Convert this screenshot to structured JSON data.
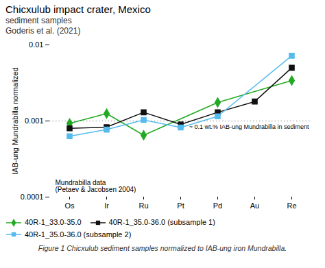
{
  "chart_data": {
    "type": "line",
    "title": "Chicxulub impact crater, Mexico",
    "subtitle": [
      "sediment samples",
      "Goderis et al. (2021)"
    ],
    "caption": "Figure 1  Chicxulub sediment samples normalized to IAB-ung iron Mundrabilla.",
    "categories": [
      "Os",
      "Ir",
      "Ru",
      "Pt",
      "Pd",
      "Au",
      "Re"
    ],
    "ylabel": "IAB-ung Mundrabilla normalized",
    "log": "y",
    "ylim": [
      0.0001,
      0.01
    ],
    "yticks": [
      0.0001,
      0.001,
      0.01
    ],
    "grid": false,
    "reference_lines": [
      {
        "y": 0.001,
        "label": "~ 0.1 wt.% IAB-ung Mundrabilla in sediment"
      }
    ],
    "annotations": [
      "Mundrabilla data\n(Petaev & Jacobsen 2004)"
    ],
    "series": [
      {
        "name": "40R-1_33.0-35.0",
        "color": "#22aa22",
        "marker": "diamond",
        "line_style": "solid",
        "values": [
          0.00093,
          0.00125,
          0.00065,
          null,
          0.00175,
          null,
          0.0034
        ]
      },
      {
        "name": "40R-1_35.0-36.0 (subsample 1)",
        "color": "#111111",
        "marker": "square",
        "line_style": "solid",
        "values": [
          0.0008,
          0.00083,
          0.0013,
          0.0009,
          0.0013,
          0.0018,
          0.005
        ]
      },
      {
        "name": "40R-1_35.0-36.0 (subsample 2)",
        "color": "#55bbee",
        "marker": "square",
        "line_style": "solid",
        "values": [
          0.00063,
          0.00077,
          0.00103,
          0.00082,
          0.00115,
          null,
          0.0072
        ]
      }
    ]
  }
}
